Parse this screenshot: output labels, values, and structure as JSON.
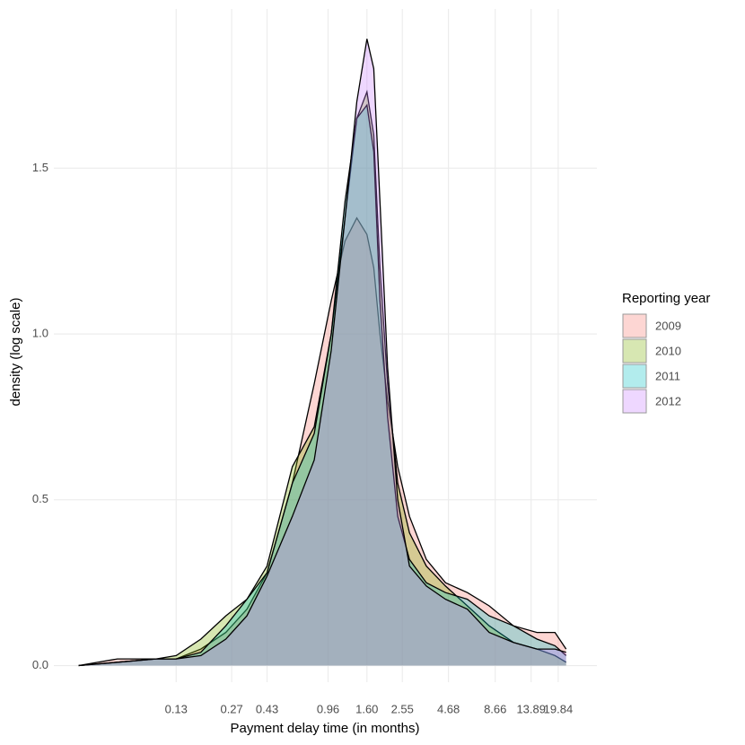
{
  "chart_data": {
    "type": "density",
    "x_label": "Payment delay time (in months)",
    "y_label": "density (log scale)",
    "legend_title": "Reporting year",
    "x_scale": "log",
    "grid": true,
    "legend_position": "right",
    "xlim": [
      0.026,
      33
    ],
    "ylim": [
      -0.05,
      1.98
    ],
    "xticks": [
      {
        "value": 0.13,
        "label": "0.13"
      },
      {
        "value": 0.27,
        "label": "0.27"
      },
      {
        "value": 0.43,
        "label": "0.43"
      },
      {
        "value": 0.96,
        "label": "0.96"
      },
      {
        "value": 1.6,
        "label": "1.60"
      },
      {
        "value": 2.55,
        "label": "2.55"
      },
      {
        "value": 4.68,
        "label": "4.68"
      },
      {
        "value": 8.66,
        "label": "8.66"
      },
      {
        "value": 13.89,
        "label": "13.89"
      },
      {
        "value": 19.84,
        "label": "19.84"
      }
    ],
    "yticks": [
      {
        "value": 0,
        "label": "0.0"
      },
      {
        "value": 0.5,
        "label": "0.5"
      },
      {
        "value": 1,
        "label": "1.0"
      },
      {
        "value": 1.5,
        "label": "1.5"
      }
    ],
    "x": [
      0.036,
      0.06,
      0.1,
      0.13,
      0.18,
      0.25,
      0.33,
      0.43,
      0.6,
      0.8,
      1.0,
      1.2,
      1.4,
      1.6,
      1.75,
      1.9,
      2.1,
      2.4,
      2.8,
      3.5,
      4.5,
      6,
      8,
      11,
      15,
      19,
      22
    ],
    "series": [
      {
        "name": "2009",
        "color": "#F8766D",
        "values": [
          0,
          0.02,
          0.02,
          0.02,
          0.05,
          0.1,
          0.17,
          0.28,
          0.55,
          0.85,
          1.1,
          1.28,
          1.35,
          1.3,
          1.2,
          1.0,
          0.8,
          0.6,
          0.45,
          0.32,
          0.25,
          0.22,
          0.18,
          0.12,
          0.1,
          0.1,
          0.05
        ]
      },
      {
        "name": "2010",
        "color": "#7CAE00",
        "values": [
          0,
          0.01,
          0.02,
          0.03,
          0.08,
          0.15,
          0.2,
          0.3,
          0.6,
          0.72,
          1.0,
          1.35,
          1.65,
          1.73,
          1.6,
          1.2,
          0.85,
          0.55,
          0.4,
          0.3,
          0.24,
          0.18,
          0.12,
          0.07,
          0.05,
          0.03,
          0.01
        ]
      },
      {
        "name": "2011",
        "color": "#00BFC4",
        "values": [
          0,
          0.01,
          0.02,
          0.02,
          0.04,
          0.12,
          0.2,
          0.28,
          0.55,
          0.7,
          1.0,
          1.4,
          1.65,
          1.69,
          1.55,
          1.1,
          0.75,
          0.45,
          0.32,
          0.25,
          0.22,
          0.2,
          0.15,
          0.12,
          0.08,
          0.06,
          0.03
        ]
      },
      {
        "name": "2012",
        "color": "#C77CFF",
        "values": [
          0,
          0.01,
          0.02,
          0.02,
          0.03,
          0.08,
          0.15,
          0.27,
          0.45,
          0.62,
          0.95,
          1.35,
          1.7,
          1.89,
          1.8,
          1.4,
          0.9,
          0.5,
          0.3,
          0.24,
          0.2,
          0.17,
          0.1,
          0.07,
          0.05,
          0.05,
          0.04
        ]
      }
    ]
  }
}
